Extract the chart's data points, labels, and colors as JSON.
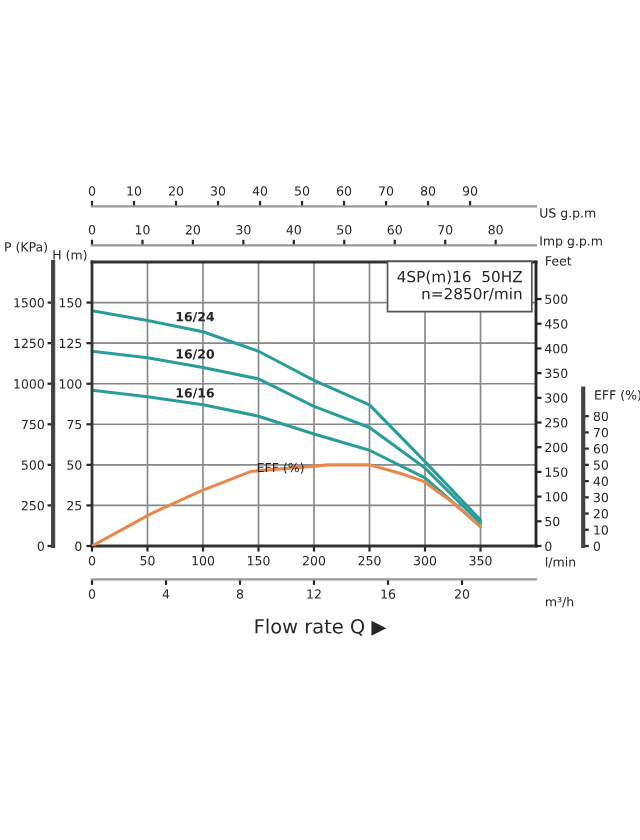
{
  "chart_data": [
    {
      "type": "line",
      "xlabel": "l/min",
      "ylabel": "H (m)",
      "y2label": "P (KPa)",
      "y3label": "Feet",
      "x2label": "Imp g.p.m",
      "annotations": [
        "4SP(m)16  50HZ\nn=2850r/min",
        "Flow rate Q ▶"
      ],
      "x": [
        0,
        50,
        100,
        150,
        200,
        250,
        300,
        350
      ],
      "series": [
        {
          "name": "16/24",
          "color": "#2a9d9a",
          "values": [
            145,
            139,
            132,
            120,
            102,
            87,
            52,
            16
          ]
        },
        {
          "name": "16/20",
          "color": "#2a9d9a",
          "values": [
            120,
            116,
            110,
            103,
            86,
            73,
            48,
            14
          ]
        },
        {
          "name": "16/16",
          "color": "#2a9d9a",
          "values": [
            96,
            92,
            87,
            80,
            69,
            59,
            42,
            12
          ]
        }
      ],
      "xlim": [
        0,
        400
      ],
      "xticks": [
        0,
        50,
        100,
        150,
        200,
        250,
        300,
        350
      ],
      "ylim": [
        0,
        175
      ],
      "yticks": [
        0,
        25,
        50,
        75,
        100,
        125,
        150
      ],
      "y2lim": [
        0,
        1750
      ],
      "y2ticks": [
        0,
        250,
        500,
        750,
        1000,
        1250,
        1500
      ],
      "y3lim": [
        0,
        575
      ],
      "y3ticks": [
        0,
        50,
        100,
        150,
        200,
        250,
        300,
        350,
        400,
        450,
        500
      ],
      "x2lim": [
        0,
        88
      ],
      "x2ticks": [
        0,
        10,
        20,
        30,
        40,
        50,
        60,
        70,
        80
      ],
      "grid": true,
      "legend": false,
      "marker": "none",
      "line_style": "solid"
    },
    {
      "type": "line",
      "xlabel": "m³/h",
      "ylabel": "EFF (%)",
      "x2label": "US g.p.m",
      "x": [
        0,
        3.2,
        5.9,
        8.6,
        12.8,
        15,
        16.6,
        17.9,
        19.6,
        21
      ],
      "series": [
        {
          "name": "EFF (%)",
          "color": "#e8884a",
          "values": [
            0,
            20,
            34,
            46,
            50,
            50,
            45,
            40,
            26,
            12
          ]
        }
      ],
      "xlim": [
        0,
        24
      ],
      "xticks": [
        0,
        4,
        8,
        12,
        16,
        20
      ],
      "ylim": [
        0,
        175
      ],
      "yticks": [
        0,
        10,
        20,
        30,
        40,
        50,
        60,
        70,
        80
      ],
      "x2lim": [
        0,
        105.7
      ],
      "x2ticks": [
        0,
        10,
        20,
        30,
        40,
        50,
        60,
        70,
        80,
        90
      ],
      "legend": false,
      "marker": "none",
      "line_style": "solid"
    }
  ]
}
